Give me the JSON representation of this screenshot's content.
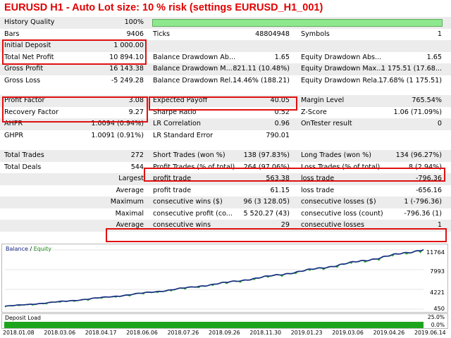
{
  "title": "EURUSD H1 - Auto Lot size: 10 % risk (settings EURUSD_H1_001)",
  "rows": [
    {
      "shade": true,
      "cells": [
        {
          "t": "History Quality"
        },
        {
          "t": "100%"
        }
      ],
      "history_quality_fill": 1.0
    },
    {
      "shade": false,
      "cells": [
        {
          "t": "Bars"
        },
        {
          "t": "9406"
        },
        {
          "t": "Ticks"
        },
        {
          "t": "48804948"
        },
        {
          "t": "Symbols"
        },
        {
          "t": "1"
        }
      ]
    },
    {
      "shade": true,
      "cells": [
        {
          "t": "Initial Deposit"
        },
        {
          "t": "1 000.00"
        }
      ]
    },
    {
      "shade": false,
      "cells": [
        {
          "t": "Total Net Profit"
        },
        {
          "t": "10 894.10"
        },
        {
          "t": "Balance Drawdown Ab..."
        },
        {
          "t": "1.65"
        },
        {
          "t": "Equity Drawdown Abs..."
        },
        {
          "t": "1.65"
        }
      ]
    },
    {
      "shade": true,
      "cells": [
        {
          "t": "Gross Profit"
        },
        {
          "t": "16 143.38"
        },
        {
          "t": "Balance Drawdown M..."
        },
        {
          "t": "821.11 (10.48%)"
        },
        {
          "t": "Equity Drawdown Max..."
        },
        {
          "t": "1 175.51 (17.68..."
        }
      ]
    },
    {
      "shade": false,
      "cells": [
        {
          "t": "Gross Loss"
        },
        {
          "t": "-5 249.28"
        },
        {
          "t": "Balance Drawdown Rel..."
        },
        {
          "t": "14.46% (188.21)"
        },
        {
          "t": "Equity Drawdown Rela..."
        },
        {
          "t": "17.68% (1 175.51)"
        }
      ]
    },
    {
      "gap": true
    },
    {
      "shade": true,
      "cells": [
        {
          "t": "Profit Factor"
        },
        {
          "t": "3.08"
        },
        {
          "t": "Expected Payoff"
        },
        {
          "t": "40.05"
        },
        {
          "t": "Margin Level"
        },
        {
          "t": "765.54%"
        }
      ]
    },
    {
      "shade": false,
      "cells": [
        {
          "t": "Recovery Factor"
        },
        {
          "t": "9.27"
        },
        {
          "t": "Sharpe Ratio"
        },
        {
          "t": "0.52"
        },
        {
          "t": "Z-Score"
        },
        {
          "t": "1.06 (71.09%)"
        }
      ]
    },
    {
      "shade": true,
      "cells": [
        {
          "t": "AHPR"
        },
        {
          "t": "1.0094 (0.94%)"
        },
        {
          "t": "LR Correlation"
        },
        {
          "t": "0.96"
        },
        {
          "t": "OnTester result"
        },
        {
          "t": "0"
        }
      ]
    },
    {
      "shade": false,
      "cells": [
        {
          "t": "GHPR"
        },
        {
          "t": "1.0091 (0.91%)"
        },
        {
          "t": "LR Standard Error"
        },
        {
          "t": "790.01"
        }
      ]
    },
    {
      "gap": true
    },
    {
      "shade": true,
      "cells": [
        {
          "t": "Total Trades"
        },
        {
          "t": "272"
        },
        {
          "t": "Short Trades (won %)"
        },
        {
          "t": "138 (97.83%)"
        },
        {
          "t": "Long Trades (won %)"
        },
        {
          "t": "134 (96.27%)"
        }
      ]
    },
    {
      "shade": false,
      "cells": [
        {
          "t": "Total Deals"
        },
        {
          "t": "544"
        },
        {
          "t": "Profit Trades (% of total)"
        },
        {
          "t": "264 (97.06%)"
        },
        {
          "t": "Loss Trades (% of total)"
        },
        {
          "t": "8 (2.94%)"
        }
      ]
    },
    {
      "shade": true,
      "cells": [
        {
          "t": ""
        },
        {
          "t": "Largest"
        },
        {
          "t": "profit trade"
        },
        {
          "t": "563.38"
        },
        {
          "t": "loss trade"
        },
        {
          "t": "-796.36"
        }
      ]
    },
    {
      "shade": false,
      "cells": [
        {
          "t": ""
        },
        {
          "t": "Average"
        },
        {
          "t": "profit trade"
        },
        {
          "t": "61.15"
        },
        {
          "t": "loss trade"
        },
        {
          "t": "-656.16"
        }
      ]
    },
    {
      "shade": true,
      "cells": [
        {
          "t": ""
        },
        {
          "t": "Maximum"
        },
        {
          "t": "consecutive wins ($)"
        },
        {
          "t": "96 (3 128.05)"
        },
        {
          "t": "consecutive losses ($)"
        },
        {
          "t": "1 (-796.36)"
        }
      ]
    },
    {
      "shade": false,
      "cells": [
        {
          "t": ""
        },
        {
          "t": "Maximal"
        },
        {
          "t": "consecutive profit (co..."
        },
        {
          "t": "5 520.27 (43)"
        },
        {
          "t": "consecutive loss (count)"
        },
        {
          "t": "-796.36 (1)"
        }
      ]
    },
    {
      "shade": true,
      "cells": [
        {
          "t": ""
        },
        {
          "t": "Average"
        },
        {
          "t": "consecutive wins"
        },
        {
          "t": "29"
        },
        {
          "t": "consecutive losses"
        },
        {
          "t": "1"
        }
      ]
    }
  ],
  "chart": {
    "legend_balance": "Balance",
    "legend_sep": " / ",
    "legend_equity": "Equity",
    "balance_color": "#1b2a8a",
    "equity_color": "#22aa22",
    "y_ticks": [
      "11764",
      "7993",
      "4221",
      "450"
    ],
    "y_values": [
      11764,
      7993,
      4221,
      450
    ],
    "ylim": [
      450,
      11764
    ],
    "balance_start": 1000,
    "balance_end": 11894.1,
    "x_labels": [
      "2018.01.08",
      "2018.03.06",
      "2018.04.17",
      "2018.06.06",
      "2018.07.26",
      "2018.09.26",
      "2018.11.30",
      "2019.01.23",
      "2019.03.06",
      "2019.04.26",
      "2019.06.14"
    ]
  },
  "deposit_load": {
    "label": "Deposit Load",
    "ticks": [
      "25.0%",
      "0.0%"
    ],
    "load_color": "#1ca51c"
  }
}
